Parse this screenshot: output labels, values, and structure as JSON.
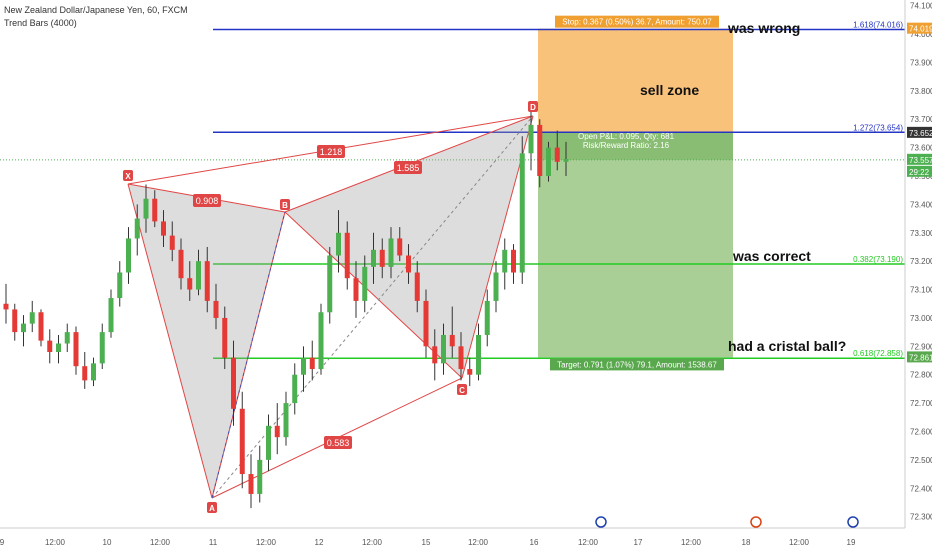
{
  "header": {
    "symbol": "New Zealand Dollar/Japanese Yen, 60, FXCM",
    "indicator": "Trend Bars (4000)"
  },
  "annotations": {
    "sell_zone": "sell zone",
    "was_wrong": "was wrong",
    "was_correct": "was correct",
    "cristal_ball": "had a cristal ball?"
  },
  "position": {
    "stop_label": "Stop: 0.367 (0.50%) 36.7, Amount: 750.07",
    "target_label": "Target: 0.791 (1.07%) 79.1, Amount: 1538.67",
    "pnl_label": "Open P&L: 0.095, Qty: 681",
    "rr_label": "Risk/Reward Ratio: 2.16"
  },
  "price_badges": {
    "top": "74.019",
    "entry": "73.652",
    "current": "73.557",
    "countdown": "29:22",
    "target": "72.861"
  },
  "colors": {
    "sell_zone": "#f9c27a",
    "profit_zone": "#a9cf96",
    "pattern": "#e04646",
    "fib_blue": "#2434c4",
    "fib_green": "#22cc22",
    "candle_up": "#4caf50",
    "candle_down": "#e53935"
  },
  "chart_data": {
    "type": "candlestick",
    "title": "New Zealand Dollar/Japanese Yen, 60, FXCM",
    "ylim": [
      72.26,
      74.12
    ],
    "y_ticks": [
      "74.100",
      "74.000",
      "73.900",
      "73.800",
      "73.700",
      "73.600",
      "73.500",
      "73.400",
      "73.300",
      "73.200",
      "73.100",
      "73.000",
      "72.900",
      "72.800",
      "72.700",
      "72.600",
      "72.500",
      "72.400",
      "72.300"
    ],
    "x_ticks": [
      "9",
      "12:00",
      "10",
      "12:00",
      "11",
      "12:00",
      "12",
      "12:00",
      "15",
      "12:00",
      "16",
      "12:00",
      "17",
      "12:00",
      "18",
      "12:00",
      "19"
    ],
    "pattern_points": [
      {
        "label": "X",
        "price": 73.47
      },
      {
        "label": "A",
        "price": 72.33
      },
      {
        "label": "B",
        "price": 73.38
      },
      {
        "label": "C",
        "price": 72.76
      },
      {
        "label": "D",
        "price": 73.73
      }
    ],
    "pattern_ratios": [
      "0.908",
      "1.218",
      "1.585",
      "0.583"
    ],
    "fib_levels": [
      {
        "label": "1.618(74.016)",
        "price": 74.016
      },
      {
        "label": "1.272(73.654)",
        "price": 73.654
      },
      {
        "label": "0.382(73.190)",
        "price": 73.19
      },
      {
        "label": "0.618(72.858)",
        "price": 72.858
      }
    ],
    "stop_price": 74.019,
    "entry_price": 73.652,
    "target_price": 72.861,
    "current_price": 73.557,
    "candles": [
      [
        73.05,
        73.12,
        72.98,
        73.03
      ],
      [
        73.03,
        73.05,
        72.92,
        72.95
      ],
      [
        72.95,
        73.01,
        72.9,
        72.98
      ],
      [
        72.98,
        73.06,
        72.95,
        73.02
      ],
      [
        73.02,
        73.03,
        72.9,
        72.92
      ],
      [
        72.92,
        72.96,
        72.84,
        72.88
      ],
      [
        72.88,
        72.94,
        72.84,
        72.91
      ],
      [
        72.91,
        72.98,
        72.88,
        72.95
      ],
      [
        72.95,
        72.97,
        72.8,
        72.83
      ],
      [
        72.83,
        72.88,
        72.75,
        72.78
      ],
      [
        72.78,
        72.86,
        72.76,
        72.84
      ],
      [
        72.84,
        72.98,
        72.82,
        72.95
      ],
      [
        72.95,
        73.1,
        72.93,
        73.07
      ],
      [
        73.07,
        73.2,
        73.04,
        73.16
      ],
      [
        73.16,
        73.32,
        73.12,
        73.28
      ],
      [
        73.28,
        73.4,
        73.22,
        73.35
      ],
      [
        73.35,
        73.47,
        73.3,
        73.42
      ],
      [
        73.42,
        73.45,
        73.32,
        73.34
      ],
      [
        73.34,
        73.38,
        73.25,
        73.29
      ],
      [
        73.29,
        73.34,
        73.2,
        73.24
      ],
      [
        73.24,
        73.28,
        73.1,
        73.14
      ],
      [
        73.14,
        73.2,
        73.06,
        73.1
      ],
      [
        73.1,
        73.24,
        73.08,
        73.2
      ],
      [
        73.2,
        73.25,
        73.02,
        73.06
      ],
      [
        73.06,
        73.12,
        72.96,
        73.0
      ],
      [
        73.0,
        73.04,
        72.82,
        72.86
      ],
      [
        72.86,
        72.92,
        72.62,
        72.68
      ],
      [
        72.68,
        72.74,
        72.4,
        72.45
      ],
      [
        72.45,
        72.52,
        72.33,
        72.38
      ],
      [
        72.38,
        72.55,
        72.35,
        72.5
      ],
      [
        72.5,
        72.66,
        72.46,
        72.62
      ],
      [
        72.62,
        72.7,
        72.52,
        72.58
      ],
      [
        72.58,
        72.74,
        72.55,
        72.7
      ],
      [
        72.7,
        72.84,
        72.66,
        72.8
      ],
      [
        72.8,
        72.9,
        72.74,
        72.86
      ],
      [
        72.86,
        72.92,
        72.78,
        72.82
      ],
      [
        72.82,
        73.05,
        72.8,
        73.02
      ],
      [
        73.02,
        73.25,
        72.98,
        73.22
      ],
      [
        73.22,
        73.38,
        73.16,
        73.3
      ],
      [
        73.3,
        73.34,
        73.1,
        73.14
      ],
      [
        73.14,
        73.2,
        73.0,
        73.06
      ],
      [
        73.06,
        73.22,
        73.02,
        73.18
      ],
      [
        73.18,
        73.3,
        73.12,
        73.24
      ],
      [
        73.24,
        73.28,
        73.14,
        73.18
      ],
      [
        73.18,
        73.32,
        73.14,
        73.28
      ],
      [
        73.28,
        73.32,
        73.2,
        73.22
      ],
      [
        73.22,
        73.26,
        73.12,
        73.16
      ],
      [
        73.16,
        73.2,
        73.02,
        73.06
      ],
      [
        73.06,
        73.1,
        72.86,
        72.9
      ],
      [
        72.9,
        72.96,
        72.78,
        72.84
      ],
      [
        72.84,
        72.98,
        72.8,
        72.94
      ],
      [
        72.94,
        73.04,
        72.86,
        72.9
      ],
      [
        72.9,
        72.95,
        72.78,
        72.82
      ],
      [
        72.82,
        72.86,
        72.76,
        72.8
      ],
      [
        72.8,
        72.98,
        72.78,
        72.94
      ],
      [
        72.94,
        73.1,
        72.9,
        73.06
      ],
      [
        73.06,
        73.2,
        73.02,
        73.16
      ],
      [
        73.16,
        73.28,
        73.1,
        73.24
      ],
      [
        73.24,
        73.26,
        73.12,
        73.16
      ],
      [
        73.16,
        73.64,
        73.12,
        73.58
      ],
      [
        73.58,
        73.73,
        73.52,
        73.68
      ],
      [
        73.68,
        73.7,
        73.46,
        73.5
      ],
      [
        73.5,
        73.62,
        73.48,
        73.6
      ],
      [
        73.6,
        73.66,
        73.52,
        73.55
      ],
      [
        73.55,
        73.62,
        73.5,
        73.56
      ]
    ]
  }
}
